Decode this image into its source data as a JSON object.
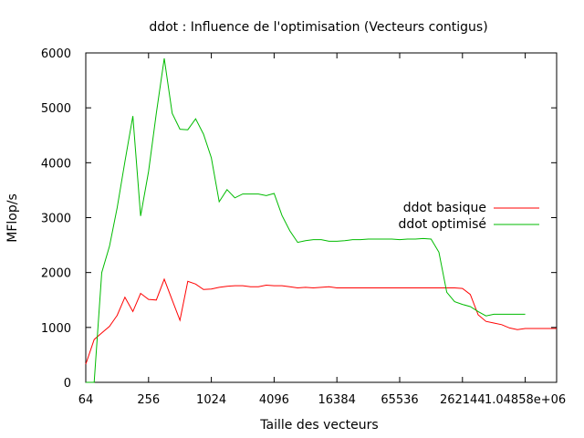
{
  "chart_data": {
    "type": "line",
    "title": "ddot : Influence de l'optimisation (Vecteurs contigus)",
    "xlabel": "Taille des vecteurs",
    "ylabel": "MFlop/s",
    "x_scale": "log2",
    "xlim": [
      64,
      2097152
    ],
    "ylim": [
      0,
      6000
    ],
    "grid": false,
    "legend_position": "right",
    "x_ticks": [
      {
        "value": 64,
        "label": "64"
      },
      {
        "value": 256,
        "label": "256"
      },
      {
        "value": 1024,
        "label": "1024"
      },
      {
        "value": 4096,
        "label": "4096"
      },
      {
        "value": 16384,
        "label": "16384"
      },
      {
        "value": 65536,
        "label": "65536"
      },
      {
        "value": 262144,
        "label": "262144"
      },
      {
        "value": 1048576,
        "label": "1.04858e+06"
      }
    ],
    "y_ticks": [
      {
        "value": 0,
        "label": "0"
      },
      {
        "value": 1000,
        "label": "1000"
      },
      {
        "value": 2000,
        "label": "2000"
      },
      {
        "value": 3000,
        "label": "3000"
      },
      {
        "value": 4000,
        "label": "4000"
      },
      {
        "value": 5000,
        "label": "5000"
      },
      {
        "value": 6000,
        "label": "6000"
      }
    ],
    "series": [
      {
        "name": "ddot basique",
        "color": "#ff0000",
        "x": [
          64,
          77,
          91,
          108,
          128,
          152,
          181,
          215,
          256,
          304,
          362,
          431,
          512,
          609,
          724,
          861,
          1024,
          1218,
          1448,
          1722,
          2048,
          2435,
          2896,
          3444,
          4096,
          4871,
          5793,
          6889,
          8192,
          9742,
          11585,
          13777,
          16384,
          19484,
          23170,
          27554,
          32768,
          38968,
          46341,
          55109,
          65536,
          77936,
          92682,
          110218,
          131072,
          155872,
          185364,
          220436,
          262144,
          311744,
          370728,
          440872,
          524288,
          623487,
          741455,
          881744,
          1048576,
          1246974,
          1482910,
          1763488,
          2097152
        ],
        "values": [
          330,
          780,
          900,
          1020,
          1220,
          1550,
          1290,
          1620,
          1510,
          1500,
          1880,
          1500,
          1130,
          1840,
          1790,
          1690,
          1700,
          1730,
          1750,
          1760,
          1760,
          1740,
          1740,
          1770,
          1760,
          1760,
          1740,
          1720,
          1730,
          1720,
          1730,
          1740,
          1720,
          1720,
          1720,
          1720,
          1720,
          1720,
          1720,
          1720,
          1720,
          1720,
          1720,
          1720,
          1720,
          1720,
          1720,
          1720,
          1710,
          1600,
          1230,
          1110,
          1080,
          1050,
          990,
          960,
          980,
          980,
          980,
          980,
          980
        ]
      },
      {
        "name": "ddot optimisé",
        "color": "#00bb00",
        "x": [
          64,
          77,
          91,
          108,
          128,
          152,
          181,
          215,
          256,
          304,
          362,
          431,
          512,
          609,
          724,
          861,
          1024,
          1218,
          1448,
          1722,
          2048,
          2435,
          2896,
          3444,
          4096,
          4871,
          5793,
          6889,
          8192,
          9742,
          11585,
          13777,
          16384,
          19484,
          23170,
          27554,
          32768,
          38968,
          46341,
          55109,
          65536,
          77936,
          92682,
          110218,
          131072,
          155872,
          185364,
          220436,
          262144,
          311744,
          370728,
          440872,
          524288,
          623487,
          741455,
          881744,
          1048576
        ],
        "values": [
          0,
          0,
          2000,
          2480,
          3180,
          4020,
          4850,
          3030,
          3840,
          4900,
          5900,
          4900,
          4610,
          4600,
          4800,
          4520,
          4090,
          3290,
          3510,
          3360,
          3430,
          3430,
          3430,
          3400,
          3440,
          3040,
          2760,
          2550,
          2580,
          2600,
          2600,
          2570,
          2570,
          2580,
          2600,
          2600,
          2610,
          2610,
          2610,
          2610,
          2600,
          2610,
          2610,
          2620,
          2610,
          2370,
          1640,
          1470,
          1420,
          1380,
          1290,
          1210,
          1240,
          1240,
          1240,
          1240,
          1240
        ]
      }
    ]
  }
}
